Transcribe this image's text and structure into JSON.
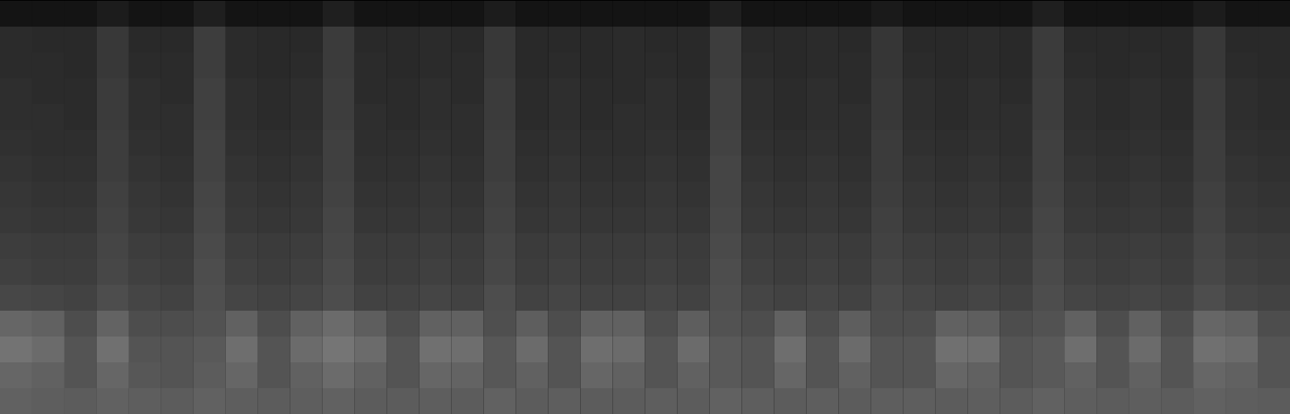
{
  "chart_data": {
    "type": "heatmap",
    "tick_labels": false,
    "zlim": [
      0,
      100
    ],
    "cells": [
      [
        8,
        8,
        8,
        11,
        8,
        8,
        12,
        8,
        8,
        8,
        12,
        8,
        8,
        8,
        8,
        11,
        8,
        8,
        8,
        8,
        8,
        8,
        12,
        8,
        8,
        8,
        8,
        10,
        8,
        8,
        8,
        8,
        12,
        8,
        8,
        8,
        8,
        11,
        8,
        8
      ],
      [
        17,
        16,
        16,
        22,
        16,
        16,
        24,
        17,
        16,
        16,
        23,
        16,
        16,
        17,
        16,
        22,
        16,
        16,
        16,
        17,
        16,
        16,
        24,
        16,
        16,
        17,
        16,
        21,
        16,
        16,
        17,
        16,
        23,
        16,
        16,
        16,
        16,
        22,
        16,
        16
      ],
      [
        17,
        17,
        16,
        22,
        17,
        17,
        24,
        17,
        16,
        17,
        23,
        17,
        16,
        17,
        17,
        22,
        16,
        17,
        16,
        17,
        17,
        16,
        24,
        17,
        16,
        17,
        17,
        21,
        17,
        16,
        17,
        16,
        23,
        17,
        16,
        17,
        16,
        22,
        17,
        16
      ],
      [
        18,
        17,
        17,
        23,
        18,
        17,
        25,
        18,
        17,
        18,
        24,
        17,
        17,
        18,
        17,
        23,
        17,
        18,
        17,
        17,
        18,
        17,
        25,
        18,
        17,
        18,
        17,
        22,
        18,
        17,
        18,
        17,
        24,
        18,
        17,
        18,
        17,
        23,
        18,
        17
      ],
      [
        18,
        18,
        17,
        23,
        18,
        18,
        25,
        18,
        17,
        18,
        24,
        18,
        17,
        18,
        18,
        23,
        17,
        18,
        17,
        18,
        18,
        17,
        25,
        18,
        17,
        18,
        18,
        22,
        18,
        17,
        18,
        18,
        24,
        18,
        17,
        18,
        17,
        23,
        18,
        17
      ],
      [
        19,
        18,
        18,
        24,
        19,
        18,
        26,
        19,
        18,
        19,
        25,
        18,
        18,
        19,
        18,
        24,
        18,
        19,
        18,
        18,
        19,
        18,
        26,
        19,
        18,
        19,
        18,
        23,
        19,
        18,
        19,
        18,
        25,
        19,
        18,
        19,
        18,
        24,
        19,
        18
      ],
      [
        20,
        19,
        19,
        24,
        20,
        19,
        26,
        20,
        19,
        20,
        25,
        19,
        19,
        20,
        19,
        24,
        19,
        20,
        19,
        19,
        20,
        19,
        27,
        20,
        19,
        20,
        19,
        23,
        20,
        19,
        20,
        19,
        25,
        20,
        19,
        20,
        19,
        24,
        20,
        19
      ],
      [
        21,
        20,
        20,
        25,
        21,
        20,
        27,
        21,
        20,
        21,
        26,
        20,
        20,
        21,
        20,
        25,
        20,
        21,
        20,
        20,
        21,
        20,
        27,
        21,
        20,
        21,
        20,
        24,
        21,
        20,
        21,
        20,
        26,
        21,
        20,
        21,
        20,
        25,
        21,
        20
      ],
      [
        22,
        21,
        21,
        26,
        22,
        21,
        28,
        22,
        21,
        22,
        27,
        21,
        21,
        22,
        21,
        26,
        21,
        22,
        21,
        21,
        22,
        21,
        28,
        22,
        21,
        22,
        21,
        25,
        22,
        21,
        22,
        21,
        27,
        22,
        21,
        22,
        21,
        26,
        22,
        21
      ],
      [
        24,
        23,
        23,
        27,
        24,
        23,
        29,
        24,
        23,
        24,
        28,
        23,
        23,
        24,
        23,
        27,
        23,
        24,
        23,
        23,
        24,
        23,
        29,
        24,
        23,
        24,
        23,
        26,
        24,
        23,
        24,
        23,
        28,
        24,
        23,
        24,
        23,
        27,
        24,
        23
      ],
      [
        25,
        24,
        24,
        28,
        25,
        24,
        30,
        25,
        24,
        25,
        29,
        24,
        24,
        25,
        24,
        28,
        24,
        25,
        24,
        24,
        25,
        24,
        30,
        25,
        24,
        25,
        24,
        27,
        25,
        24,
        25,
        24,
        29,
        25,
        24,
        25,
        24,
        28,
        25,
        24
      ],
      [
        28,
        27,
        26,
        30,
        27,
        26,
        31,
        27,
        26,
        27,
        30,
        26,
        26,
        27,
        26,
        30,
        26,
        27,
        26,
        26,
        27,
        26,
        31,
        27,
        26,
        27,
        26,
        29,
        27,
        26,
        27,
        26,
        30,
        27,
        26,
        27,
        26,
        30,
        27,
        26
      ],
      [
        40,
        38,
        30,
        39,
        30,
        30,
        32,
        38,
        30,
        38,
        42,
        37,
        30,
        38,
        38,
        31,
        37,
        30,
        38,
        38,
        30,
        37,
        32,
        30,
        38,
        30,
        37,
        30,
        30,
        38,
        37,
        30,
        32,
        38,
        30,
        38,
        30,
        40,
        38,
        30
      ],
      [
        45,
        42,
        33,
        44,
        33,
        33,
        35,
        43,
        33,
        42,
        46,
        42,
        33,
        44,
        43,
        34,
        42,
        33,
        43,
        42,
        33,
        42,
        35,
        33,
        43,
        33,
        42,
        33,
        33,
        44,
        43,
        33,
        35,
        43,
        33,
        42,
        33,
        44,
        42,
        33
      ],
      [
        40,
        38,
        33,
        40,
        34,
        33,
        36,
        40,
        33,
        38,
        42,
        38,
        33,
        40,
        39,
        34,
        38,
        33,
        40,
        38,
        33,
        38,
        35,
        33,
        40,
        33,
        38,
        33,
        33,
        40,
        38,
        33,
        35,
        38,
        33,
        38,
        33,
        40,
        38,
        33
      ],
      [
        38,
        37,
        36,
        38,
        37,
        36,
        38,
        37,
        36,
        37,
        38,
        36,
        36,
        37,
        36,
        38,
        36,
        37,
        36,
        36,
        37,
        36,
        38,
        37,
        36,
        37,
        36,
        37,
        37,
        36,
        37,
        36,
        38,
        37,
        36,
        37,
        36,
        38,
        37,
        36
      ]
    ]
  }
}
